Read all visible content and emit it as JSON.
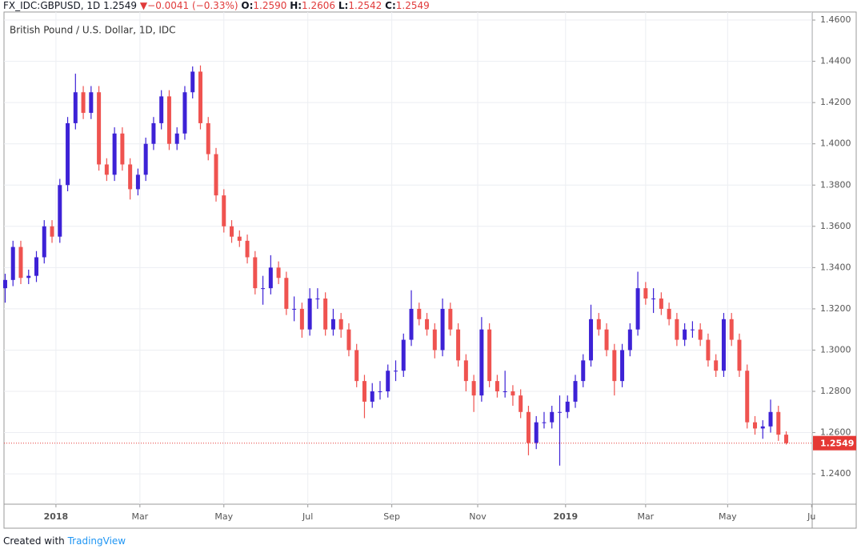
{
  "header": {
    "symbol": "FX_IDC:GBPUSD, 1D",
    "price": "1.2549",
    "arrow": "▼",
    "change": "−0.0041 (−0.33%)",
    "o_label": "O:",
    "o": "1.2590",
    "h_label": "H:",
    "h": "1.2606",
    "l_label": "L:",
    "l": "1.2542",
    "c_label": "C:",
    "c": "1.2549"
  },
  "footer": {
    "created_with": "Created with",
    "brand": "TradingView"
  },
  "chart_data": {
    "type": "candlestick",
    "title": "British Pound / U.S. Dollar, 1D, IDC",
    "up_color": "#3d22d6",
    "down_color": "#ef5350",
    "grid": true,
    "last_price": 1.2549,
    "last_price_color": "#e53935",
    "xlim": [
      -26.6,
      387.3
    ],
    "ylim": [
      1.2253,
      1.4639
    ],
    "xticks": [
      {
        "value": 0,
        "label": "2018"
      },
      {
        "value": 43,
        "label": "Mar"
      },
      {
        "value": 86,
        "label": "May"
      },
      {
        "value": 129,
        "label": "Jul"
      },
      {
        "value": 172,
        "label": "Sep"
      },
      {
        "value": 216,
        "label": "Nov"
      },
      {
        "value": 261,
        "label": "2019"
      },
      {
        "value": 302,
        "label": "Mar"
      },
      {
        "value": 344,
        "label": "May"
      },
      {
        "value": 387,
        "label": "Ju"
      }
    ],
    "yticks": [
      {
        "value": 1.24,
        "label": "1.2400"
      },
      {
        "value": 1.26,
        "label": "1.2600"
      },
      {
        "value": 1.28,
        "label": "1.2800"
      },
      {
        "value": 1.3,
        "label": "1.3000"
      },
      {
        "value": 1.32,
        "label": "1.3200"
      },
      {
        "value": 1.34,
        "label": "1.3400"
      },
      {
        "value": 1.36,
        "label": "1.3600"
      },
      {
        "value": 1.38,
        "label": "1.3800"
      },
      {
        "value": 1.4,
        "label": "1.4000"
      },
      {
        "value": 1.42,
        "label": "1.4200"
      },
      {
        "value": 1.44,
        "label": "1.4400"
      },
      {
        "value": 1.46,
        "label": "1.4600"
      }
    ],
    "x": [
      -26,
      -22,
      -18,
      -14,
      -10,
      -6,
      -2,
      2,
      6,
      10,
      14,
      18,
      22,
      26,
      30,
      34,
      38,
      42,
      46,
      50,
      54,
      58,
      62,
      66,
      70,
      74,
      78,
      82,
      86,
      90,
      94,
      98,
      102,
      106,
      110,
      114,
      118,
      122,
      126,
      130,
      134,
      138,
      142,
      146,
      150,
      154,
      158,
      162,
      166,
      170,
      174,
      178,
      182,
      186,
      190,
      194,
      198,
      202,
      206,
      210,
      214,
      218,
      222,
      226,
      230,
      234,
      238,
      242,
      246,
      250,
      254,
      258,
      262,
      266,
      270,
      274,
      278,
      282,
      286,
      290,
      294,
      298,
      302,
      306,
      310,
      314,
      318,
      322,
      326,
      330,
      334,
      338,
      342,
      346,
      350,
      354,
      358,
      362,
      366,
      370,
      374
    ],
    "ohlc": [
      [
        1.33,
        1.337,
        1.323,
        1.334
      ],
      [
        1.334,
        1.353,
        1.331,
        1.35
      ],
      [
        1.35,
        1.353,
        1.332,
        1.335
      ],
      [
        1.335,
        1.339,
        1.332,
        1.336
      ],
      [
        1.336,
        1.348,
        1.333,
        1.345
      ],
      [
        1.345,
        1.363,
        1.342,
        1.36
      ],
      [
        1.36,
        1.363,
        1.352,
        1.355
      ],
      [
        1.355,
        1.383,
        1.352,
        1.38
      ],
      [
        1.38,
        1.413,
        1.377,
        1.41
      ],
      [
        1.41,
        1.434,
        1.407,
        1.425
      ],
      [
        1.425,
        1.428,
        1.412,
        1.415
      ],
      [
        1.415,
        1.428,
        1.412,
        1.425
      ],
      [
        1.425,
        1.428,
        1.387,
        1.39
      ],
      [
        1.39,
        1.393,
        1.382,
        1.385
      ],
      [
        1.385,
        1.408,
        1.382,
        1.405
      ],
      [
        1.405,
        1.408,
        1.387,
        1.39
      ],
      [
        1.39,
        1.393,
        1.373,
        1.378
      ],
      [
        1.378,
        1.388,
        1.375,
        1.385
      ],
      [
        1.385,
        1.403,
        1.382,
        1.4
      ],
      [
        1.4,
        1.413,
        1.397,
        1.41
      ],
      [
        1.41,
        1.426,
        1.407,
        1.423
      ],
      [
        1.423,
        1.426,
        1.397,
        1.4
      ],
      [
        1.4,
        1.408,
        1.397,
        1.405
      ],
      [
        1.405,
        1.428,
        1.402,
        1.425
      ],
      [
        1.425,
        1.4375,
        1.422,
        1.435
      ],
      [
        1.435,
        1.438,
        1.407,
        1.41
      ],
      [
        1.41,
        1.413,
        1.392,
        1.395
      ],
      [
        1.395,
        1.398,
        1.372,
        1.375
      ],
      [
        1.375,
        1.378,
        1.357,
        1.36
      ],
      [
        1.36,
        1.363,
        1.352,
        1.355
      ],
      [
        1.355,
        1.358,
        1.35,
        1.353
      ],
      [
        1.353,
        1.356,
        1.342,
        1.345
      ],
      [
        1.345,
        1.348,
        1.327,
        1.33
      ],
      [
        1.33,
        1.336,
        1.322,
        1.33
      ],
      [
        1.33,
        1.346,
        1.327,
        1.34
      ],
      [
        1.34,
        1.343,
        1.332,
        1.335
      ],
      [
        1.335,
        1.338,
        1.317,
        1.32
      ],
      [
        1.32,
        1.326,
        1.314,
        1.32
      ],
      [
        1.32,
        1.323,
        1.306,
        1.31
      ],
      [
        1.31,
        1.33,
        1.307,
        1.325
      ],
      [
        1.325,
        1.33,
        1.32,
        1.325
      ],
      [
        1.325,
        1.328,
        1.307,
        1.31
      ],
      [
        1.31,
        1.32,
        1.307,
        1.315
      ],
      [
        1.315,
        1.318,
        1.306,
        1.31
      ],
      [
        1.31,
        1.313,
        1.297,
        1.3
      ],
      [
        1.3,
        1.303,
        1.282,
        1.285
      ],
      [
        1.285,
        1.288,
        1.267,
        1.275
      ],
      [
        1.275,
        1.284,
        1.272,
        1.28
      ],
      [
        1.28,
        1.285,
        1.276,
        1.28
      ],
      [
        1.28,
        1.293,
        1.277,
        1.29
      ],
      [
        1.29,
        1.295,
        1.285,
        1.29
      ],
      [
        1.29,
        1.308,
        1.287,
        1.305
      ],
      [
        1.305,
        1.329,
        1.302,
        1.32
      ],
      [
        1.32,
        1.323,
        1.312,
        1.315
      ],
      [
        1.315,
        1.318,
        1.307,
        1.31
      ],
      [
        1.31,
        1.313,
        1.296,
        1.3
      ],
      [
        1.3,
        1.325,
        1.297,
        1.32
      ],
      [
        1.32,
        1.323,
        1.307,
        1.31
      ],
      [
        1.31,
        1.313,
        1.292,
        1.295
      ],
      [
        1.295,
        1.298,
        1.28,
        1.285
      ],
      [
        1.285,
        1.288,
        1.27,
        1.278
      ],
      [
        1.278,
        1.316,
        1.275,
        1.31
      ],
      [
        1.31,
        1.313,
        1.282,
        1.285
      ],
      [
        1.285,
        1.288,
        1.277,
        1.28
      ],
      [
        1.28,
        1.29,
        1.277,
        1.28
      ],
      [
        1.28,
        1.283,
        1.273,
        1.278
      ],
      [
        1.278,
        1.281,
        1.267,
        1.27
      ],
      [
        1.27,
        1.273,
        1.249,
        1.255
      ],
      [
        1.255,
        1.268,
        1.252,
        1.265
      ],
      [
        1.265,
        1.27,
        1.262,
        1.265
      ],
      [
        1.265,
        1.273,
        1.262,
        1.27
      ],
      [
        1.27,
        1.278,
        1.244,
        1.27
      ],
      [
        1.27,
        1.278,
        1.267,
        1.275
      ],
      [
        1.275,
        1.288,
        1.272,
        1.285
      ],
      [
        1.285,
        1.298,
        1.282,
        1.295
      ],
      [
        1.295,
        1.322,
        1.292,
        1.315
      ],
      [
        1.315,
        1.318,
        1.307,
        1.31
      ],
      [
        1.31,
        1.313,
        1.297,
        1.3
      ],
      [
        1.3,
        1.303,
        1.278,
        1.285
      ],
      [
        1.285,
        1.303,
        1.282,
        1.3
      ],
      [
        1.3,
        1.313,
        1.297,
        1.31
      ],
      [
        1.31,
        1.338,
        1.307,
        1.33
      ],
      [
        1.33,
        1.333,
        1.322,
        1.325
      ],
      [
        1.325,
        1.33,
        1.318,
        1.325
      ],
      [
        1.325,
        1.328,
        1.317,
        1.32
      ],
      [
        1.32,
        1.323,
        1.312,
        1.315
      ],
      [
        1.315,
        1.318,
        1.302,
        1.305
      ],
      [
        1.305,
        1.313,
        1.302,
        1.31
      ],
      [
        1.31,
        1.314,
        1.306,
        1.31
      ],
      [
        1.31,
        1.313,
        1.302,
        1.305
      ],
      [
        1.305,
        1.308,
        1.292,
        1.295
      ],
      [
        1.295,
        1.298,
        1.287,
        1.29
      ],
      [
        1.29,
        1.318,
        1.287,
        1.315
      ],
      [
        1.315,
        1.318,
        1.302,
        1.305
      ],
      [
        1.305,
        1.308,
        1.287,
        1.29
      ],
      [
        1.29,
        1.293,
        1.262,
        1.265
      ],
      [
        1.265,
        1.268,
        1.259,
        1.262
      ],
      [
        1.262,
        1.266,
        1.257,
        1.263
      ],
      [
        1.263,
        1.276,
        1.26,
        1.27
      ],
      [
        1.27,
        1.273,
        1.256,
        1.259
      ],
      [
        1.259,
        1.2606,
        1.2542,
        1.2549
      ]
    ]
  }
}
